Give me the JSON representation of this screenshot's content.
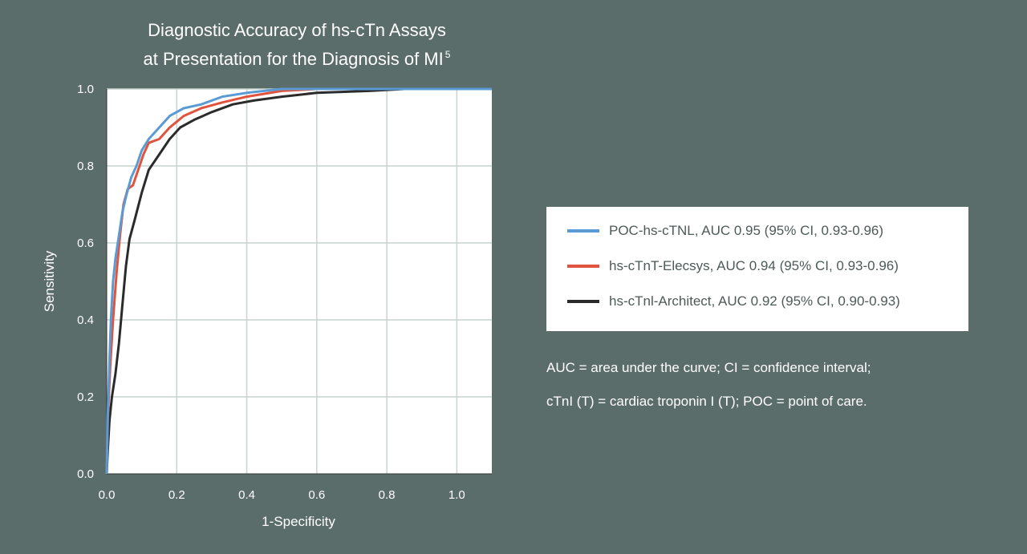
{
  "chart_data": {
    "type": "line",
    "title_line1": "Diagnostic Accuracy of hs-cTn Assays",
    "title_line2": "at Presentation for the Diagnosis of MI",
    "title_superscript": "5",
    "xlabel": "1-Specificity",
    "ylabel": "Sensitivity",
    "xlim": [
      0,
      1.1
    ],
    "ylim": [
      0,
      1.0
    ],
    "x_ticks": [
      0.0,
      0.2,
      0.4,
      0.6,
      0.8,
      1.0
    ],
    "y_ticks": [
      0.0,
      0.2,
      0.4,
      0.6,
      0.8,
      1.0
    ],
    "x_tick_labels": [
      "0.0",
      "0.2",
      "0.4",
      "0.6",
      "0.8",
      "1.0"
    ],
    "y_tick_labels": [
      "0.0",
      "0.2",
      "0.4",
      "0.6",
      "0.8",
      "1.0"
    ],
    "grid": true,
    "legend_position": "right",
    "series": [
      {
        "name": "POC-hs-cTNL, AUC 0.95 (95% CI, 0.93-0.96)",
        "color": "#5b9bd5",
        "points": [
          [
            0,
            0
          ],
          [
            0.003,
            0.15
          ],
          [
            0.008,
            0.3
          ],
          [
            0.012,
            0.4
          ],
          [
            0.018,
            0.5
          ],
          [
            0.025,
            0.56
          ],
          [
            0.035,
            0.62
          ],
          [
            0.045,
            0.68
          ],
          [
            0.055,
            0.72
          ],
          [
            0.07,
            0.77
          ],
          [
            0.085,
            0.8
          ],
          [
            0.1,
            0.84
          ],
          [
            0.12,
            0.87
          ],
          [
            0.15,
            0.9
          ],
          [
            0.18,
            0.93
          ],
          [
            0.22,
            0.95
          ],
          [
            0.27,
            0.96
          ],
          [
            0.33,
            0.98
          ],
          [
            0.4,
            0.99
          ],
          [
            0.5,
            1.0
          ],
          [
            0.6,
            1.0
          ],
          [
            0.8,
            1.0
          ],
          [
            1.1,
            1.0
          ]
        ]
      },
      {
        "name": "hs-cTnT-Elecsys, AUC 0.94 (95% CI, 0.93-0.96)",
        "color": "#e0533c",
        "points": [
          [
            0,
            0
          ],
          [
            0.003,
            0.14
          ],
          [
            0.01,
            0.28
          ],
          [
            0.018,
            0.4
          ],
          [
            0.028,
            0.52
          ],
          [
            0.038,
            0.62
          ],
          [
            0.048,
            0.7
          ],
          [
            0.06,
            0.74
          ],
          [
            0.075,
            0.75
          ],
          [
            0.09,
            0.79
          ],
          [
            0.105,
            0.83
          ],
          [
            0.12,
            0.86
          ],
          [
            0.15,
            0.87
          ],
          [
            0.18,
            0.9
          ],
          [
            0.22,
            0.93
          ],
          [
            0.27,
            0.95
          ],
          [
            0.33,
            0.965
          ],
          [
            0.4,
            0.98
          ],
          [
            0.5,
            0.995
          ],
          [
            0.6,
            1.0
          ],
          [
            0.8,
            1.0
          ],
          [
            1.1,
            1.0
          ]
        ]
      },
      {
        "name": "hs-cTnl-Architect, AUC 0.92 (95% CI, 0.90-0.93)",
        "color": "#2b2b2b",
        "points": [
          [
            0,
            0
          ],
          [
            0.003,
            0.06
          ],
          [
            0.008,
            0.14
          ],
          [
            0.015,
            0.2
          ],
          [
            0.025,
            0.26
          ],
          [
            0.035,
            0.34
          ],
          [
            0.045,
            0.44
          ],
          [
            0.055,
            0.54
          ],
          [
            0.065,
            0.61
          ],
          [
            0.08,
            0.66
          ],
          [
            0.1,
            0.73
          ],
          [
            0.12,
            0.79
          ],
          [
            0.15,
            0.83
          ],
          [
            0.18,
            0.87
          ],
          [
            0.21,
            0.9
          ],
          [
            0.25,
            0.92
          ],
          [
            0.3,
            0.94
          ],
          [
            0.36,
            0.96
          ],
          [
            0.42,
            0.97
          ],
          [
            0.5,
            0.98
          ],
          [
            0.6,
            0.99
          ],
          [
            0.75,
            0.995
          ],
          [
            0.85,
            1.0
          ],
          [
            1.1,
            1.0
          ]
        ]
      }
    ]
  },
  "footnotes": {
    "line1": "AUC = area under the curve; CI = confidence interval;",
    "line2": "cTnI (T) = cardiac troponin I (T); POC = point of care."
  }
}
